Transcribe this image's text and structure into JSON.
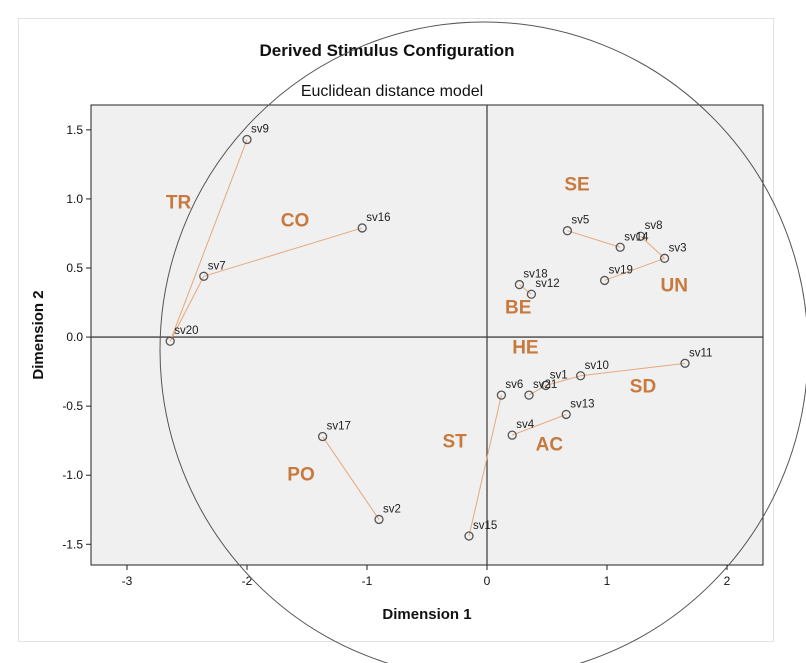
{
  "chart_data": {
    "type": "scatter",
    "title": "Derived Stimulus Configuration",
    "subtitle": "Euclidean distance model",
    "xlabel": "Dimension 1",
    "ylabel": "Dimension 2",
    "xlim": [
      -3.3,
      2.3
    ],
    "ylim": [
      -1.65,
      1.68
    ],
    "xticks": [
      -3,
      -2,
      -1,
      0,
      1,
      2
    ],
    "yticks": [
      1.5,
      1.0,
      0.5,
      0.0,
      -0.5,
      -1.0,
      -1.5
    ],
    "xtick_labels": [
      "-3",
      "-2",
      "-1",
      "0",
      "1",
      "2"
    ],
    "ytick_labels": [
      "1.5",
      "1.0",
      "0.5",
      "0.0",
      "-0.5",
      "-1.0",
      "-1.5"
    ],
    "reference_lines": {
      "x": 0,
      "y": 0
    },
    "grid": false,
    "points": [
      {
        "label": "sv1",
        "x": 0.49,
        "y": -0.35
      },
      {
        "label": "sv2",
        "x": -0.9,
        "y": -1.32
      },
      {
        "label": "sv3",
        "x": 1.48,
        "y": 0.57
      },
      {
        "label": "sv4",
        "x": 0.21,
        "y": -0.71
      },
      {
        "label": "sv5",
        "x": 0.67,
        "y": 0.77
      },
      {
        "label": "sv6",
        "x": 0.12,
        "y": -0.42
      },
      {
        "label": "sv7",
        "x": -2.36,
        "y": 0.44
      },
      {
        "label": "sv8",
        "x": 1.28,
        "y": 0.73
      },
      {
        "label": "sv9",
        "x": -2.0,
        "y": 1.43
      },
      {
        "label": "sv10",
        "x": 0.78,
        "y": -0.28
      },
      {
        "label": "sv11",
        "x": 1.65,
        "y": -0.19
      },
      {
        "label": "sv12",
        "x": 0.37,
        "y": 0.31
      },
      {
        "label": "sv13",
        "x": 0.66,
        "y": -0.56
      },
      {
        "label": "sv14",
        "x": 1.11,
        "y": 0.65
      },
      {
        "label": "sv15",
        "x": -0.15,
        "y": -1.44
      },
      {
        "label": "sv16",
        "x": -1.04,
        "y": 0.79
      },
      {
        "label": "sv17",
        "x": -1.37,
        "y": -0.72
      },
      {
        "label": "sv18",
        "x": 0.27,
        "y": 0.38
      },
      {
        "label": "sv19",
        "x": 0.98,
        "y": 0.41
      },
      {
        "label": "sv20",
        "x": -2.64,
        "y": -0.03
      },
      {
        "label": "sv21",
        "x": 0.35,
        "y": -0.42
      }
    ],
    "connections": [
      [
        "sv20",
        "sv9"
      ],
      [
        "sv20",
        "sv7"
      ],
      [
        "sv7",
        "sv16"
      ],
      [
        "sv17",
        "sv2"
      ],
      [
        "sv15",
        "sv6"
      ],
      [
        "sv21",
        "sv1"
      ],
      [
        "sv1",
        "sv10"
      ],
      [
        "sv10",
        "sv11"
      ],
      [
        "sv4",
        "sv13"
      ],
      [
        "sv5",
        "sv14"
      ],
      [
        "sv8",
        "sv3"
      ],
      [
        "sv3",
        "sv19"
      ],
      [
        "sv18",
        "sv12"
      ]
    ],
    "group_labels": [
      {
        "text": "TR",
        "x": -2.57,
        "y": 0.93
      },
      {
        "text": "CO",
        "x": -1.6,
        "y": 0.8
      },
      {
        "text": "SE",
        "x": 0.75,
        "y": 1.06
      },
      {
        "text": "UN",
        "x": 1.56,
        "y": 0.33
      },
      {
        "text": "BE",
        "x": 0.26,
        "y": 0.17
      },
      {
        "text": "HE",
        "x": 0.32,
        "y": -0.12
      },
      {
        "text": "SD",
        "x": 1.3,
        "y": -0.4
      },
      {
        "text": "ST",
        "x": -0.27,
        "y": -0.8
      },
      {
        "text": "AC",
        "x": 0.52,
        "y": -0.82
      },
      {
        "text": "PO",
        "x": -1.55,
        "y": -1.04
      }
    ],
    "colors": {
      "plot_background": "#f0f0f0",
      "connection_line": "#e6a87c",
      "group_label": "#c87a3e",
      "marker_stroke": "#555555",
      "overlay_circle": "#555555"
    }
  }
}
